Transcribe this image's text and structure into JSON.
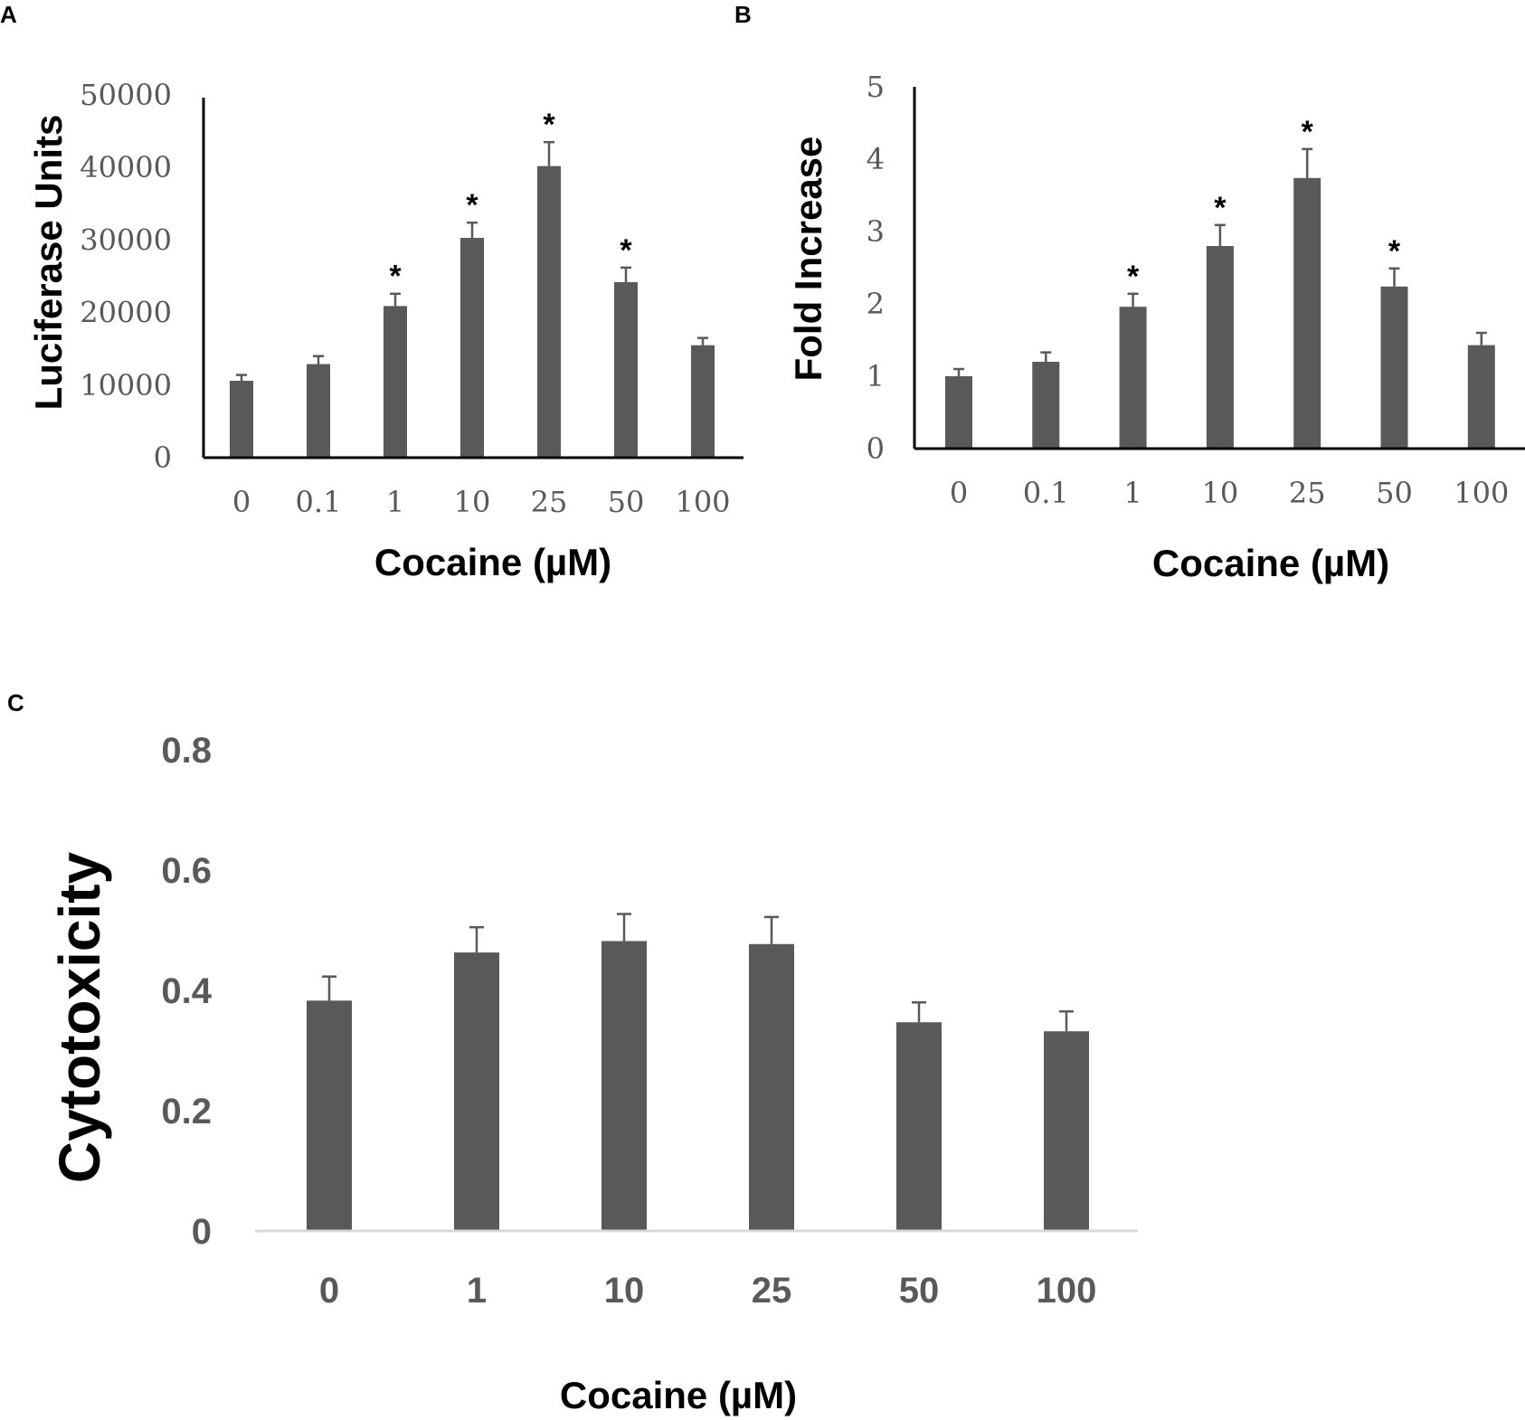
{
  "colors": {
    "bar": "#595959",
    "axis": "#000000",
    "axis_c": "#d9d9d9",
    "tick": "#595959"
  },
  "chart_data": [
    {
      "panel": "A",
      "type": "bar",
      "categories": [
        "0",
        "0.1",
        "1",
        "10",
        "25",
        "50",
        "100"
      ],
      "values": [
        10600,
        12900,
        20900,
        30300,
        40200,
        24200,
        15500
      ],
      "errors": [
        800,
        1100,
        1700,
        2100,
        3300,
        2000,
        1000
      ],
      "significant": [
        false,
        false,
        true,
        true,
        true,
        true,
        false
      ],
      "star_label": "*",
      "ylabel": "Luciferase Units",
      "xlabel": "Cocaine (µM)",
      "ylim": [
        0,
        50000
      ],
      "yticks": [
        "0",
        "10000",
        "20000",
        "30000",
        "40000",
        "50000"
      ]
    },
    {
      "panel": "B",
      "type": "bar",
      "categories": [
        "0",
        "0.1",
        "1",
        "10",
        "25",
        "50",
        "100"
      ],
      "values": [
        1.0,
        1.2,
        1.96,
        2.8,
        3.74,
        2.24,
        1.43
      ],
      "errors": [
        0.1,
        0.13,
        0.18,
        0.29,
        0.4,
        0.25,
        0.17
      ],
      "significant": [
        false,
        false,
        true,
        true,
        true,
        true,
        false
      ],
      "star_label": "*",
      "ylabel": "Fold Increase",
      "xlabel": "Cocaine (µM)",
      "ylim": [
        0,
        5
      ],
      "yticks": [
        "0",
        "1",
        "2",
        "3",
        "4",
        "5"
      ]
    },
    {
      "panel": "C",
      "type": "bar",
      "categories": [
        "0",
        "1",
        "10",
        "25",
        "50",
        "100"
      ],
      "values": [
        0.383,
        0.463,
        0.482,
        0.477,
        0.347,
        0.332
      ],
      "errors": [
        0.04,
        0.042,
        0.045,
        0.045,
        0.033,
        0.033
      ],
      "significant": [
        false,
        false,
        false,
        false,
        false,
        false
      ],
      "star_label": "*",
      "ylabel": "Cytotoxicity",
      "xlabel": "Cocaine (µM)",
      "ylim": [
        0,
        0.8
      ],
      "yticks": [
        "0",
        "0.2",
        "0.4",
        "0.6",
        "0.8"
      ]
    }
  ]
}
